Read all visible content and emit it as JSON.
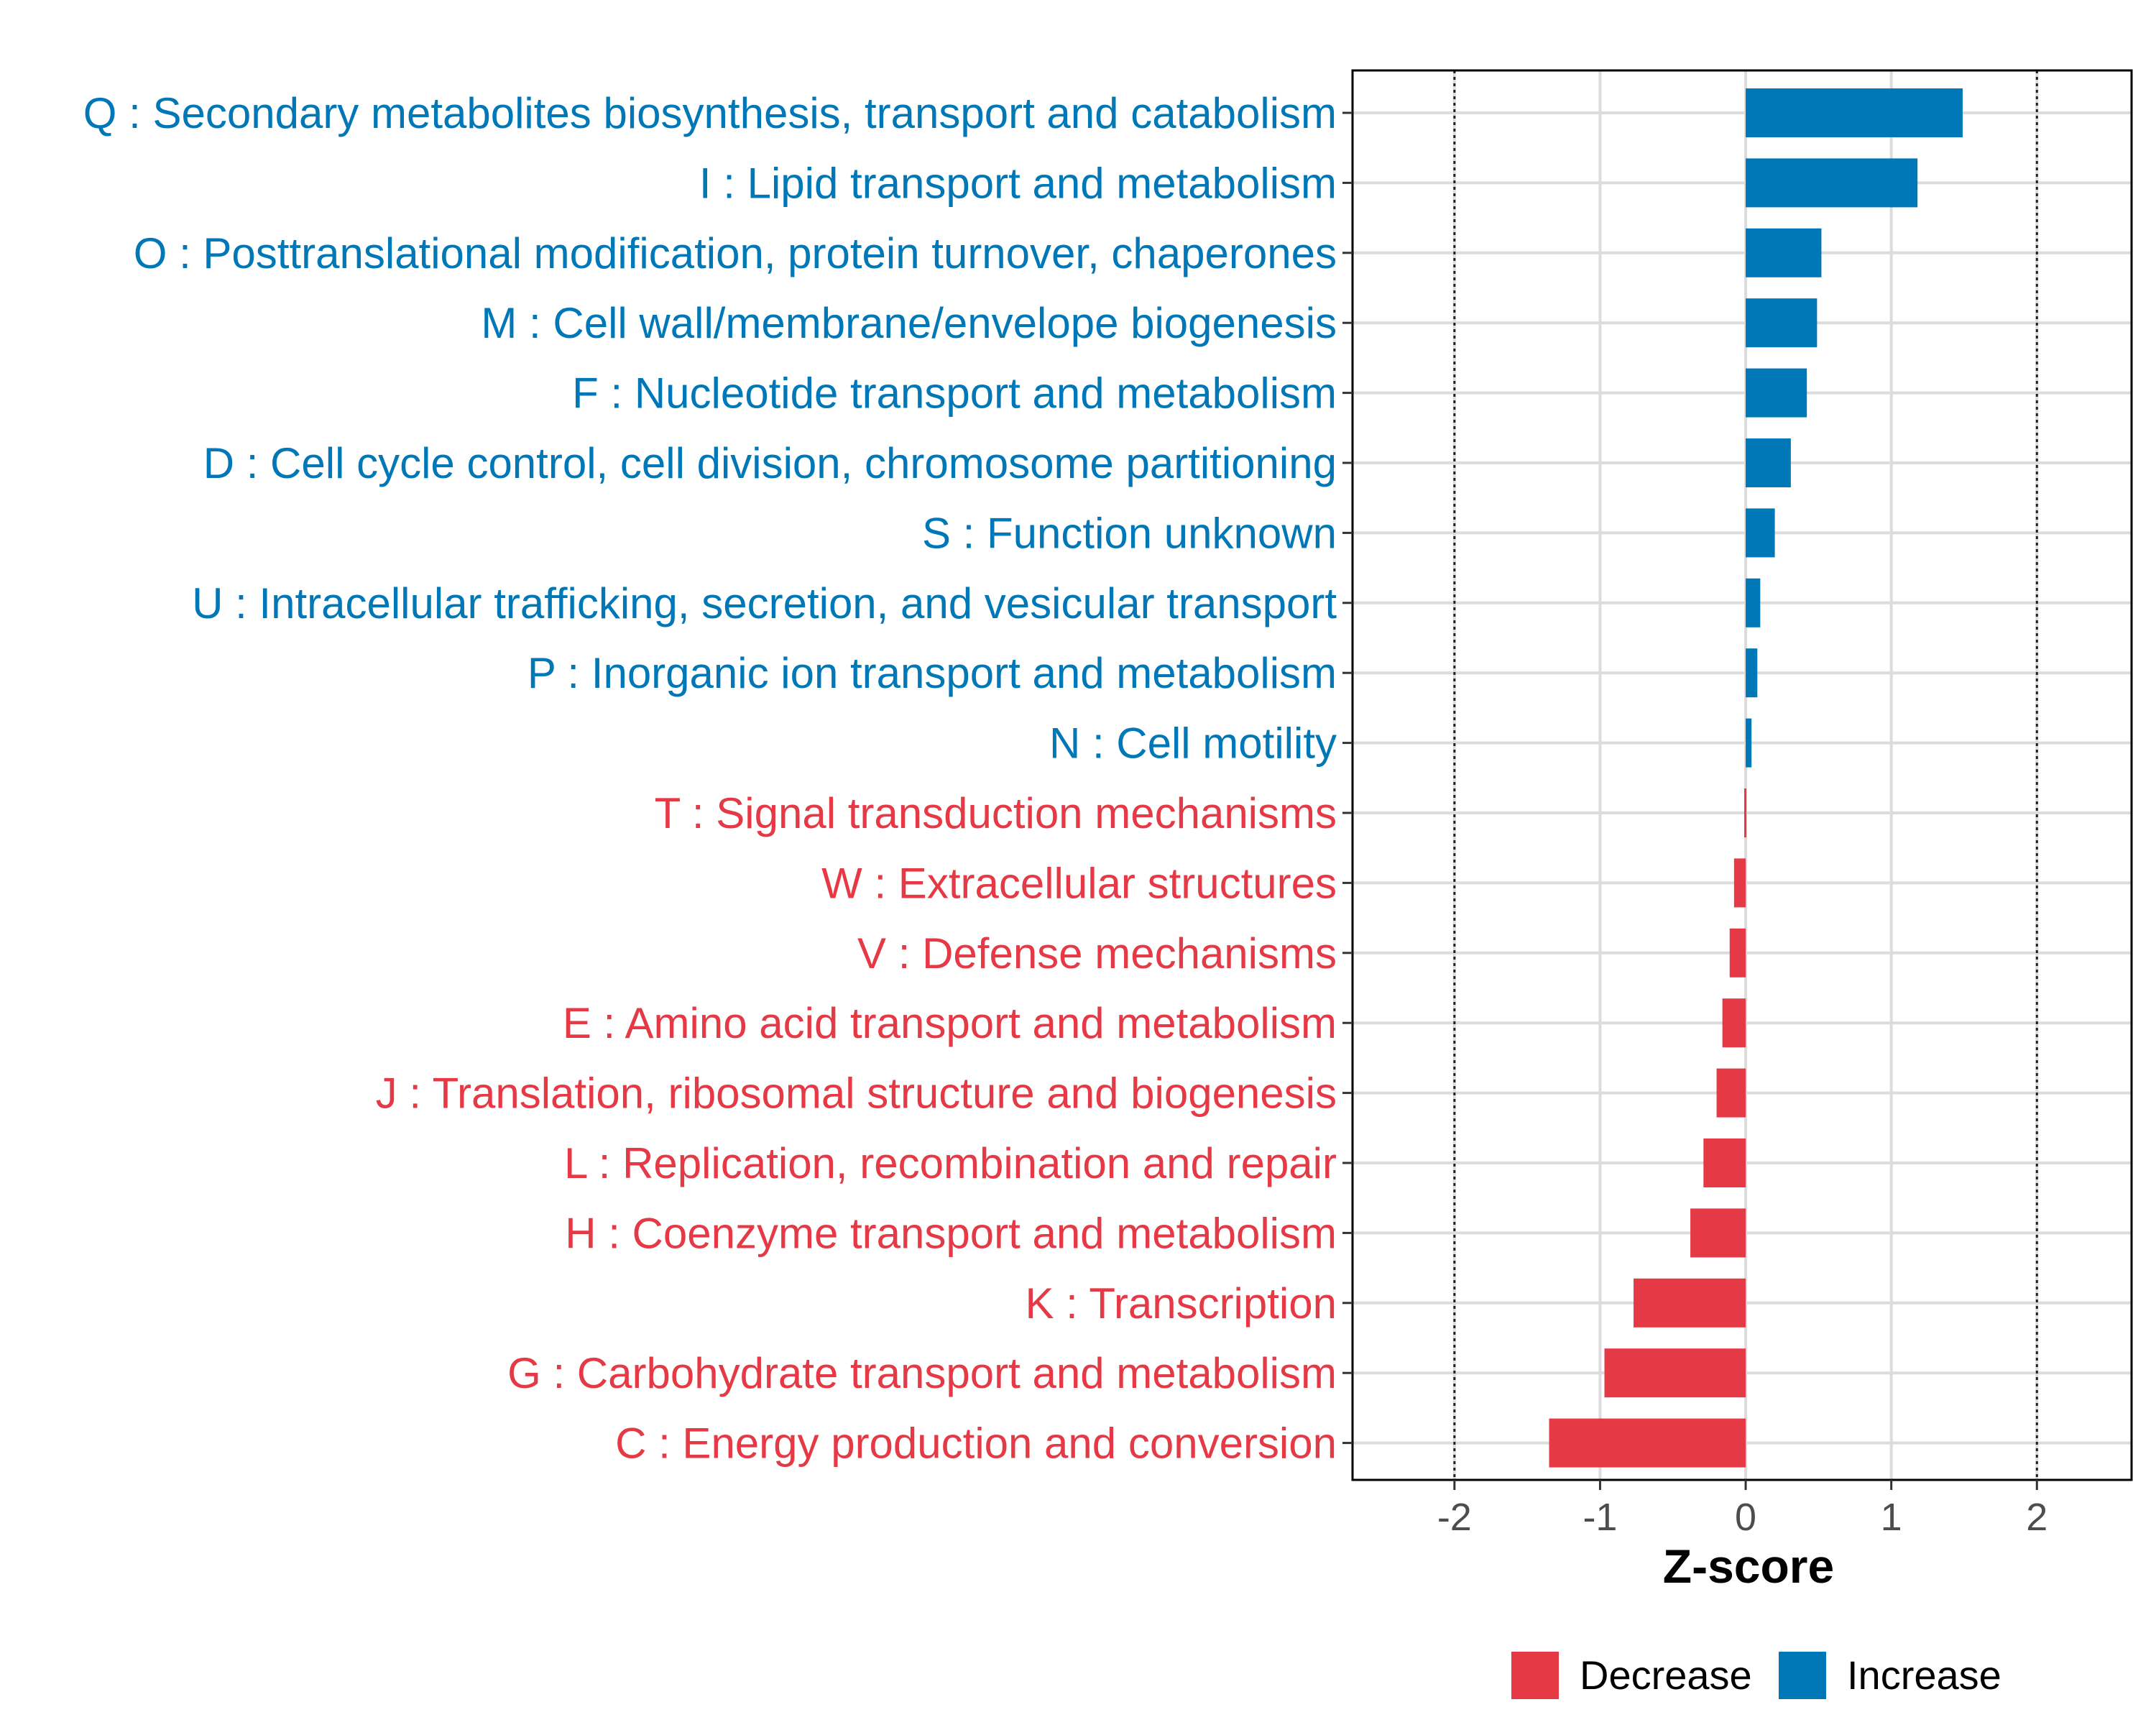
{
  "chart_data": {
    "type": "bar",
    "orientation": "horizontal",
    "title": "",
    "xlabel": "Z-score",
    "ylabel": "",
    "xlim": [
      -2.7,
      2.65
    ],
    "xticks": [
      -2,
      -1,
      0,
      1,
      2
    ],
    "xtick_labels": [
      "-2",
      "-1",
      "0",
      "1",
      "2"
    ],
    "reference_lines": [
      -2,
      2
    ],
    "grid": true,
    "legend_position": "bottom",
    "colors": {
      "Decrease": "#E63946",
      "Increase": "#0077B6"
    },
    "legend": [
      {
        "name": "Decrease",
        "color": "#E63946"
      },
      {
        "name": "Increase",
        "color": "#0077B6"
      }
    ],
    "categories": [
      "Q : Secondary metabolites biosynthesis, transport and catabolism",
      "I : Lipid transport and metabolism",
      "O : Posttranslational modification, protein turnover, chaperones",
      "M : Cell wall/membrane/envelope biogenesis",
      "F : Nucleotide transport and metabolism",
      "D : Cell cycle control, cell division, chromosome partitioning",
      "S : Function unknown",
      "U : Intracellular trafficking, secretion, and vesicular transport",
      "P : Inorganic ion transport and metabolism",
      "N : Cell motility",
      "T : Signal transduction mechanisms",
      "W : Extracellular structures",
      "V : Defense mechanisms",
      "E : Amino acid transport and metabolism",
      "J : Translation, ribosomal structure and biogenesis",
      "L : Replication, recombination and repair",
      "H : Coenzyme transport and metabolism",
      "K : Transcription",
      "G : Carbohydrate transport and metabolism",
      "C : Energy production and conversion"
    ],
    "values": [
      1.49,
      1.18,
      0.52,
      0.49,
      0.42,
      0.31,
      0.2,
      0.1,
      0.08,
      0.04,
      -0.01,
      -0.08,
      -0.11,
      -0.16,
      -0.2,
      -0.29,
      -0.38,
      -0.77,
      -0.97,
      -1.35
    ],
    "groups": [
      "Increase",
      "Increase",
      "Increase",
      "Increase",
      "Increase",
      "Increase",
      "Increase",
      "Increase",
      "Increase",
      "Increase",
      "Decrease",
      "Decrease",
      "Decrease",
      "Decrease",
      "Decrease",
      "Decrease",
      "Decrease",
      "Decrease",
      "Decrease",
      "Decrease"
    ]
  }
}
